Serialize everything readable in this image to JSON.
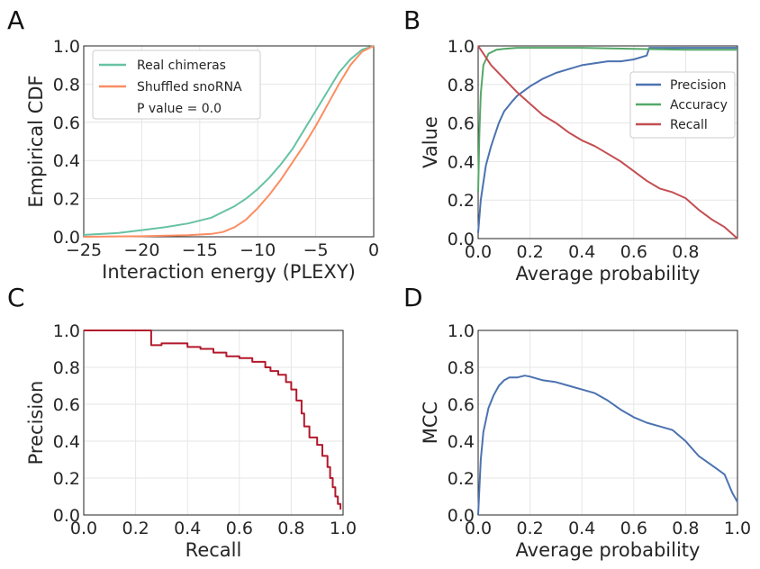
{
  "chart_data": [
    {
      "panel": "A",
      "type": "line",
      "xlabel": "Interaction energy (PLEXY)",
      "ylabel": "Empirical CDF",
      "xlim": [
        -25,
        0
      ],
      "ylim": [
        0,
        1
      ],
      "xticks": [
        "−25",
        "−20",
        "−15",
        "−10",
        "−5",
        "0"
      ],
      "yticks": [
        "0.0",
        "0.2",
        "0.4",
        "0.6",
        "0.8",
        "1.0"
      ],
      "grid": true,
      "legend_position": "upper-left",
      "annotation": "P value = 0.0",
      "series": [
        {
          "name": "Real chimeras",
          "color": "#66c2a5",
          "x": [
            -25,
            -22,
            -20,
            -18,
            -16,
            -14,
            -13,
            -12,
            -11,
            -10,
            -9,
            -8,
            -7,
            -6,
            -5,
            -4,
            -3,
            -2,
            -1,
            0
          ],
          "y": [
            0.01,
            0.02,
            0.035,
            0.05,
            0.07,
            0.1,
            0.13,
            0.16,
            0.2,
            0.25,
            0.31,
            0.38,
            0.46,
            0.56,
            0.66,
            0.76,
            0.86,
            0.93,
            0.98,
            1.0
          ]
        },
        {
          "name": "Shuffled snoRNA",
          "color": "#fc8d62",
          "x": [
            -25,
            -20,
            -16,
            -14,
            -13,
            -12,
            -11,
            -10,
            -9,
            -8,
            -7,
            -6,
            -5,
            -4,
            -3,
            -2,
            -1,
            0
          ],
          "y": [
            0.0,
            0.003,
            0.008,
            0.015,
            0.025,
            0.05,
            0.09,
            0.15,
            0.22,
            0.3,
            0.39,
            0.48,
            0.58,
            0.69,
            0.8,
            0.9,
            0.97,
            1.0
          ]
        }
      ]
    },
    {
      "panel": "B",
      "type": "line",
      "xlabel": "Average probability",
      "ylabel": "Value",
      "xlim": [
        0,
        1
      ],
      "ylim": [
        0,
        1
      ],
      "xticks": [
        "0.0",
        "0.2",
        "0.4",
        "0.6",
        "0.8"
      ],
      "yticks": [
        "0.0",
        "0.2",
        "0.4",
        "0.6",
        "0.8",
        "1.0"
      ],
      "grid": true,
      "legend_position": "right",
      "series": [
        {
          "name": "Precision",
          "color": "#4c72b0",
          "x": [
            0,
            0.01,
            0.03,
            0.05,
            0.08,
            0.1,
            0.13,
            0.15,
            0.2,
            0.25,
            0.3,
            0.35,
            0.4,
            0.45,
            0.5,
            0.55,
            0.6,
            0.65,
            0.66,
            0.7,
            0.8,
            0.9,
            1.0
          ],
          "y": [
            0.03,
            0.2,
            0.38,
            0.48,
            0.6,
            0.66,
            0.71,
            0.74,
            0.79,
            0.83,
            0.86,
            0.88,
            0.9,
            0.91,
            0.92,
            0.92,
            0.93,
            0.95,
            0.99,
            0.99,
            0.99,
            0.99,
            0.99
          ]
        },
        {
          "name": "Accuracy",
          "color": "#55a868",
          "x": [
            0,
            0.005,
            0.01,
            0.02,
            0.04,
            0.07,
            0.1,
            0.15,
            0.2,
            0.4,
            0.6,
            0.8,
            1.0
          ],
          "y": [
            0.24,
            0.55,
            0.75,
            0.9,
            0.96,
            0.98,
            0.985,
            0.99,
            0.99,
            0.99,
            0.985,
            0.98,
            0.98
          ]
        },
        {
          "name": "Recall",
          "color": "#c44e52",
          "x": [
            0,
            0.02,
            0.05,
            0.1,
            0.15,
            0.2,
            0.25,
            0.3,
            0.35,
            0.4,
            0.45,
            0.5,
            0.55,
            0.6,
            0.65,
            0.7,
            0.75,
            0.8,
            0.85,
            0.9,
            0.95,
            1.0
          ],
          "y": [
            1.0,
            0.96,
            0.9,
            0.83,
            0.76,
            0.7,
            0.64,
            0.6,
            0.55,
            0.51,
            0.48,
            0.44,
            0.4,
            0.35,
            0.3,
            0.26,
            0.24,
            0.21,
            0.15,
            0.1,
            0.06,
            0.0
          ]
        }
      ]
    },
    {
      "panel": "C",
      "type": "line",
      "xlabel": "Recall",
      "ylabel": "Precision",
      "xlim": [
        0,
        1
      ],
      "ylim": [
        0,
        1
      ],
      "xticks": [
        "0.0",
        "0.2",
        "0.4",
        "0.6",
        "0.8",
        "1.0"
      ],
      "yticks": [
        "0.0",
        "0.2",
        "0.4",
        "0.6",
        "0.8",
        "1.0"
      ],
      "grid": true,
      "series": [
        {
          "name": "",
          "color": "#b2182b",
          "step": true,
          "x": [
            0.0,
            0.25,
            0.26,
            0.3,
            0.35,
            0.4,
            0.45,
            0.5,
            0.55,
            0.6,
            0.65,
            0.7,
            0.72,
            0.75,
            0.78,
            0.8,
            0.82,
            0.84,
            0.85,
            0.87,
            0.9,
            0.92,
            0.94,
            0.95,
            0.96,
            0.97,
            0.98,
            0.99
          ],
          "y": [
            1.0,
            1.0,
            0.92,
            0.93,
            0.93,
            0.91,
            0.9,
            0.88,
            0.86,
            0.85,
            0.83,
            0.8,
            0.78,
            0.76,
            0.72,
            0.68,
            0.62,
            0.55,
            0.48,
            0.42,
            0.38,
            0.32,
            0.26,
            0.2,
            0.15,
            0.1,
            0.06,
            0.03
          ]
        }
      ]
    },
    {
      "panel": "D",
      "type": "line",
      "xlabel": "Average probability",
      "ylabel": "MCC",
      "xlim": [
        0,
        1
      ],
      "ylim": [
        0,
        1
      ],
      "xticks": [
        "0.0",
        "0.2",
        "0.4",
        "0.6",
        "0.8",
        "1.0"
      ],
      "yticks": [
        "0.0",
        "0.2",
        "0.4",
        "0.6",
        "0.8",
        "1.0"
      ],
      "grid": true,
      "series": [
        {
          "name": "",
          "color": "#4c72b0",
          "x": [
            0,
            0.01,
            0.02,
            0.04,
            0.06,
            0.08,
            0.1,
            0.12,
            0.15,
            0.18,
            0.2,
            0.25,
            0.3,
            0.35,
            0.4,
            0.45,
            0.5,
            0.55,
            0.6,
            0.65,
            0.7,
            0.75,
            0.8,
            0.85,
            0.9,
            0.95,
            0.98,
            1.0
          ],
          "y": [
            0.0,
            0.3,
            0.45,
            0.58,
            0.65,
            0.7,
            0.73,
            0.745,
            0.745,
            0.755,
            0.75,
            0.73,
            0.72,
            0.7,
            0.68,
            0.66,
            0.62,
            0.57,
            0.53,
            0.5,
            0.48,
            0.46,
            0.4,
            0.32,
            0.27,
            0.22,
            0.12,
            0.07
          ]
        }
      ]
    }
  ],
  "panel_labels": [
    "A",
    "B",
    "C",
    "D"
  ]
}
